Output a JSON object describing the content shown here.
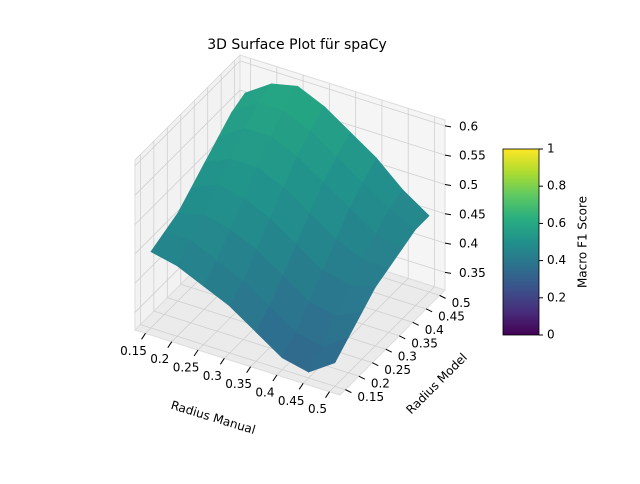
{
  "chart_data": {
    "type": "surface",
    "title": "3D Surface Plot für spaCy",
    "xlabel": "Radius Manual",
    "ylabel": "Radius Model",
    "x": [
      0.15,
      0.2,
      0.25,
      0.3,
      0.35,
      0.4,
      0.45,
      0.5
    ],
    "y": [
      0.15,
      0.2,
      0.25,
      0.3,
      0.35,
      0.4,
      0.45,
      0.5
    ],
    "z": [
      [
        0.45,
        0.44,
        0.42,
        0.4,
        0.37,
        0.34,
        0.33,
        0.36
      ],
      [
        0.46,
        0.46,
        0.44,
        0.42,
        0.39,
        0.36,
        0.35,
        0.38
      ],
      [
        0.47,
        0.48,
        0.47,
        0.45,
        0.42,
        0.39,
        0.38,
        0.4
      ],
      [
        0.49,
        0.51,
        0.5,
        0.48,
        0.45,
        0.42,
        0.41,
        0.42
      ],
      [
        0.51,
        0.53,
        0.53,
        0.51,
        0.48,
        0.45,
        0.43,
        0.43
      ],
      [
        0.53,
        0.56,
        0.56,
        0.54,
        0.51,
        0.48,
        0.45,
        0.44
      ],
      [
        0.55,
        0.58,
        0.58,
        0.56,
        0.53,
        0.5,
        0.47,
        0.45
      ],
      [
        0.56,
        0.59,
        0.6,
        0.58,
        0.55,
        0.52,
        0.48,
        0.45
      ]
    ],
    "xlim": [
      0.13,
      0.52
    ],
    "ylim": [
      0.13,
      0.52
    ],
    "zlim": [
      0.32,
      0.61
    ],
    "xticks": [
      0.15,
      0.2,
      0.25,
      0.3,
      0.35,
      0.4,
      0.45,
      0.5
    ],
    "yticks": [
      0.15,
      0.2,
      0.25,
      0.3,
      0.35,
      0.4,
      0.45,
      0.5
    ],
    "zticks": [
      0.35,
      0.4,
      0.45,
      0.5,
      0.55,
      0.6
    ],
    "grid": true,
    "colormap": "viridis",
    "colorbar": {
      "label": "Macro F1 Score",
      "lim": [
        0,
        1
      ],
      "ticks": [
        0,
        0.2,
        0.4,
        0.6,
        0.8,
        1
      ]
    }
  }
}
